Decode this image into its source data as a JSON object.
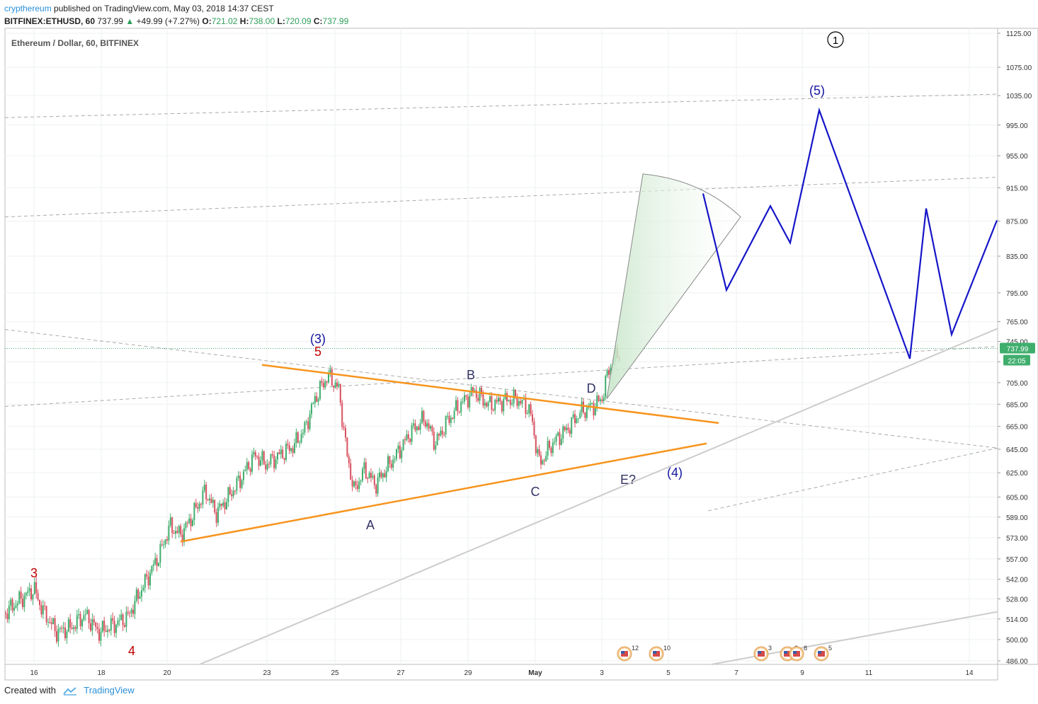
{
  "header": {
    "author": "crypthereum",
    "published": "published on TradingView.com, May 03, 2018 14:37 CEST",
    "symbol": "BITFINEX:ETHUSD, 60",
    "price": "737.99",
    "change": "+49.99 (+7.27%)",
    "o_label": "O:",
    "o_val": "721.02",
    "h_label": "H:",
    "h_val": "738.00",
    "l_label": "L:",
    "l_val": "720.09",
    "c_label": "C:",
    "c_val": "737.99"
  },
  "footer": {
    "created_with": "Created with",
    "brand": "TradingView"
  },
  "chart_data": {
    "type": "candlestick",
    "title": "Ethereum / Dollar, 60, BITFINEX",
    "x_axis": {
      "tick_labels": [
        "16",
        "18",
        "20",
        "23",
        "25",
        "27",
        "29",
        "May",
        "3",
        "5",
        "7",
        "9",
        "11",
        "14"
      ]
    },
    "y_axis": {
      "scale": "log",
      "position": "right",
      "range": [
        480,
        1130
      ],
      "tick_labels": [
        "486.00",
        "500.00",
        "514.00",
        "528.00",
        "542.00",
        "557.00",
        "573.00",
        "589.00",
        "605.00",
        "625.00",
        "645.00",
        "665.00",
        "685.00",
        "705.00",
        "725.00",
        "745.00",
        "765.00",
        "795.00",
        "835.00",
        "875.00",
        "915.00",
        "955.00",
        "995.00",
        "1035.00",
        "1075.00",
        "1125.00"
      ]
    },
    "last_price": "737.99",
    "countdown": "22:05",
    "colors": {
      "up": "#3fae6c",
      "down": "#d8505e",
      "triangle": "#f7941d",
      "projection": "#1515c8",
      "trendline": "#cccccc",
      "channel": "#aaaaaa",
      "wave_count_red": "#c00000",
      "wave_count_blue": "#1515a0",
      "abcde": "#333366"
    },
    "wave_labels": [
      "3",
      "4",
      "5",
      "(3)",
      "A",
      "B",
      "C",
      "D",
      "E?",
      "(4)",
      "(5)",
      "1"
    ],
    "event_markers": [
      {
        "count": "12"
      },
      {
        "count": "10"
      },
      {
        "count": "3"
      },
      {
        "count": "2"
      },
      {
        "count": "8"
      },
      {
        "count": "5"
      }
    ],
    "price_series_note": "hourly OHLC ETHUSD Apr 15 - May 3 2018 from ~510 to 737.99",
    "key_prices": {
      "wave3_red": 535,
      "wave4_red": 500,
      "wave5_red_peak": 712,
      "A_low": 600,
      "B_high": 700,
      "C_low": 630,
      "D_high": 690,
      "current": 737.99,
      "projected_wave5": 1015
    }
  }
}
